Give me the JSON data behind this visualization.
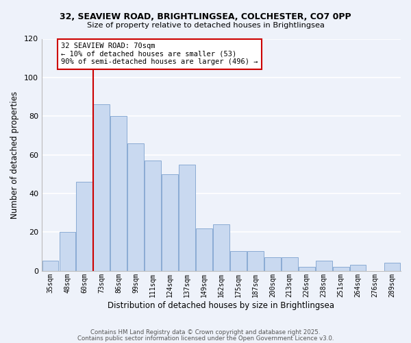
{
  "title_line1": "32, SEAVIEW ROAD, BRIGHTLINGSEA, COLCHESTER, CO7 0PP",
  "title_line2": "Size of property relative to detached houses in Brightlingsea",
  "xlabel": "Distribution of detached houses by size in Brightlingsea",
  "ylabel": "Number of detached properties",
  "bin_labels": [
    "35sqm",
    "48sqm",
    "60sqm",
    "73sqm",
    "86sqm",
    "99sqm",
    "111sqm",
    "124sqm",
    "137sqm",
    "149sqm",
    "162sqm",
    "175sqm",
    "187sqm",
    "200sqm",
    "213sqm",
    "226sqm",
    "238sqm",
    "251sqm",
    "264sqm",
    "276sqm",
    "289sqm"
  ],
  "bar_heights": [
    5,
    20,
    46,
    86,
    80,
    66,
    57,
    50,
    55,
    22,
    24,
    10,
    10,
    7,
    7,
    2,
    5,
    2,
    3,
    0,
    4
  ],
  "bar_color": "#c9d9f0",
  "bar_edge_color": "#8aabd4",
  "vline_color": "#cc0000",
  "annotation_text": "32 SEAVIEW ROAD: 70sqm\n← 10% of detached houses are smaller (53)\n90% of semi-detached houses are larger (496) →",
  "annotation_box_color": "#ffffff",
  "annotation_box_edge": "#cc0000",
  "ylim": [
    0,
    120
  ],
  "yticks": [
    0,
    20,
    40,
    60,
    80,
    100,
    120
  ],
  "footer_line1": "Contains HM Land Registry data © Crown copyright and database right 2025.",
  "footer_line2": "Contains public sector information licensed under the Open Government Licence v3.0.",
  "bg_color": "#eef2fa",
  "grid_color": "#ffffff"
}
